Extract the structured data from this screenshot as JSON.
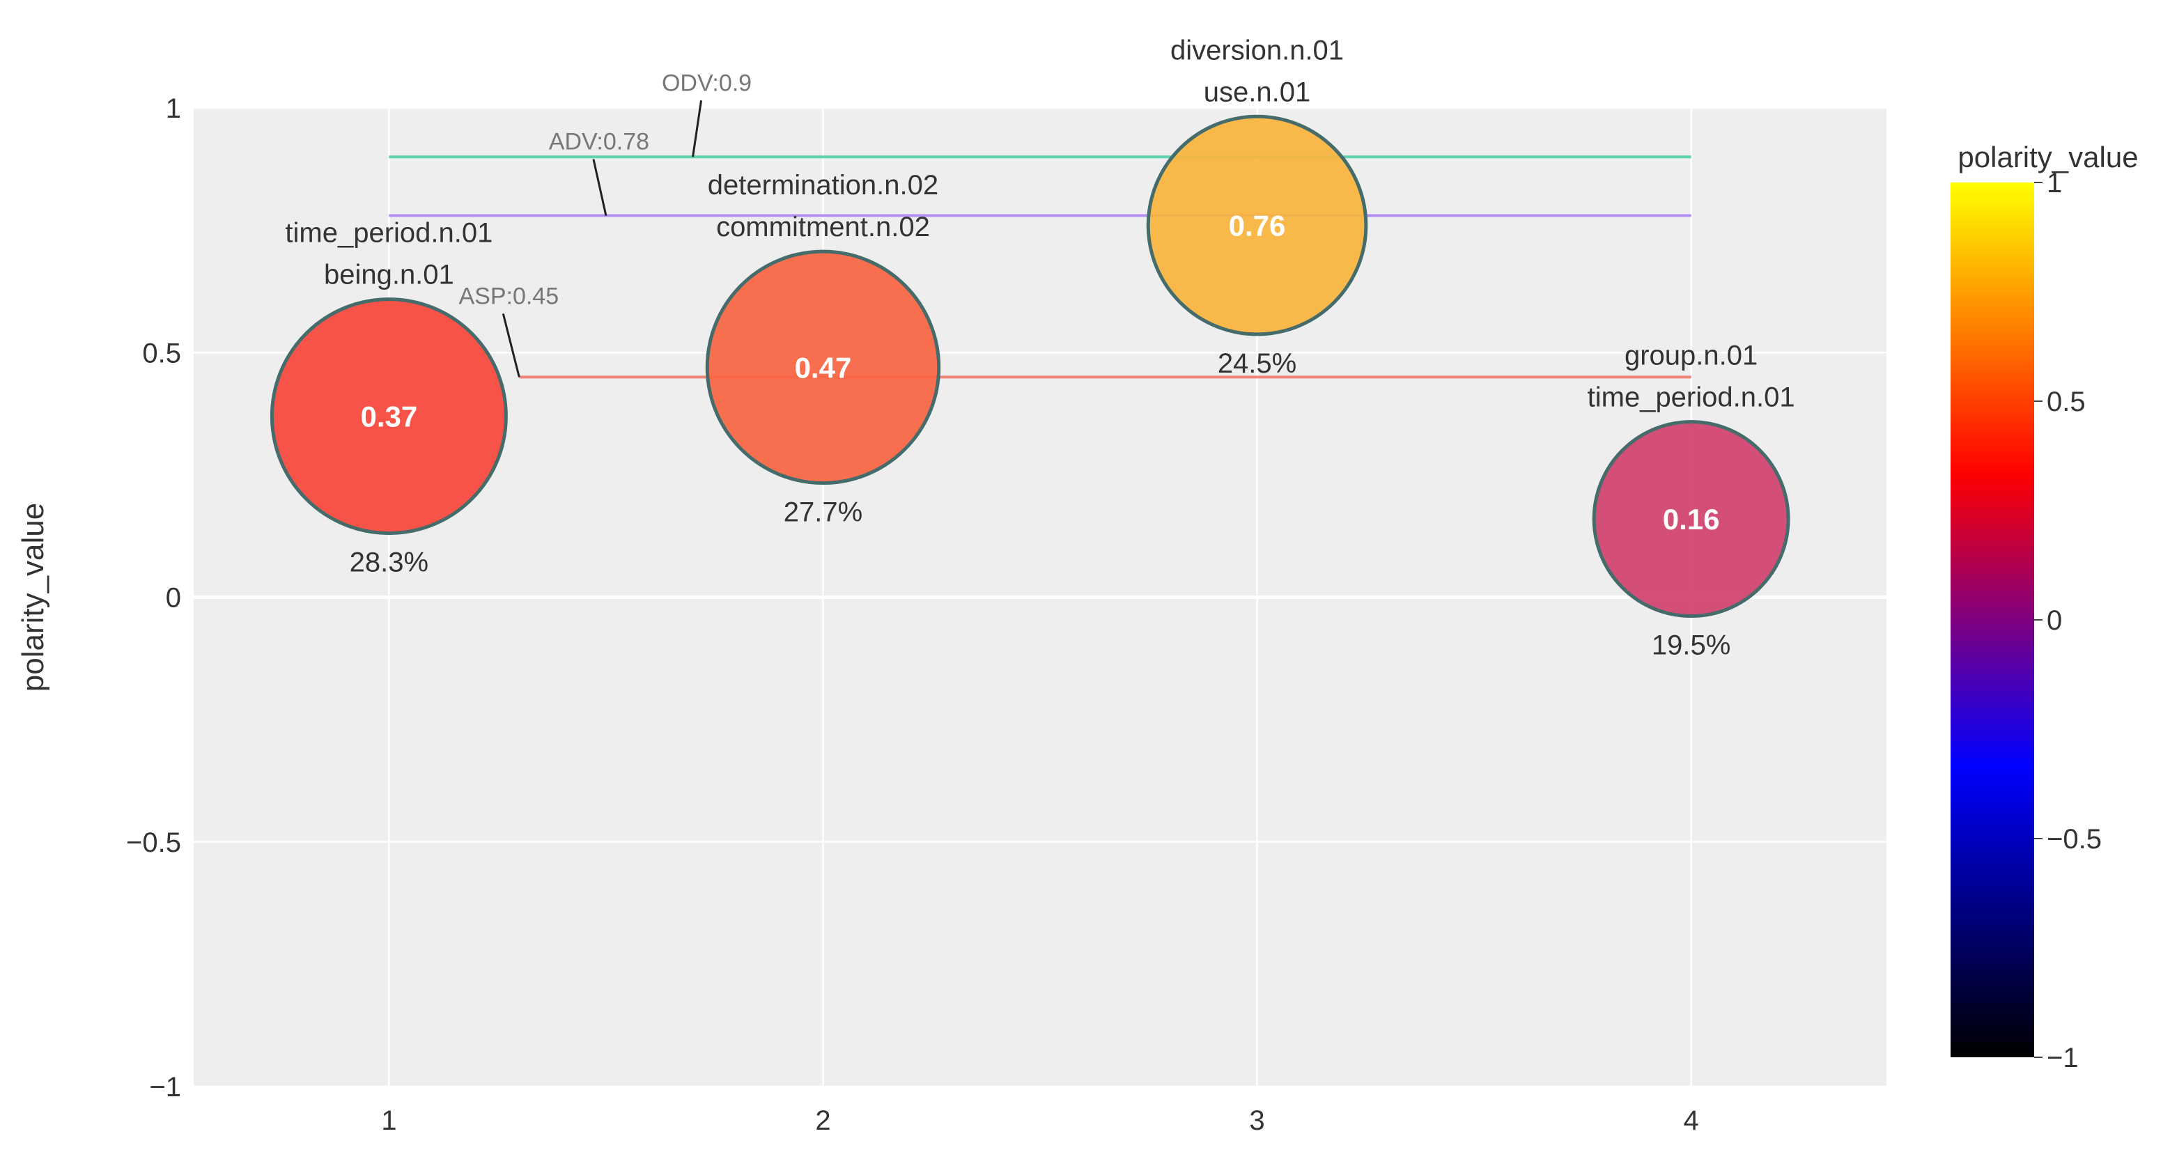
{
  "chart_data": {
    "type": "scatter",
    "x_ticks": [
      1,
      2,
      3,
      4
    ],
    "y_ticks": [
      {
        "v": 1,
        "label": "1"
      },
      {
        "v": 0.5,
        "label": "0.5"
      },
      {
        "v": 0,
        "label": "0"
      },
      {
        "v": -0.5,
        "label": "−0.5"
      },
      {
        "v": -1,
        "label": "−1"
      }
    ],
    "xlim": [
      0.55,
      4.45
    ],
    "ylim": [
      -1.0,
      1.0
    ],
    "ylabel": "polarity_value",
    "points": [
      {
        "x": 1,
        "y": 0.37,
        "value_label": "0.37",
        "share": 28.3,
        "share_label": "28.3%",
        "labels": [
          "time_period.n.01",
          "being.n.01"
        ],
        "color": "#f7453a"
      },
      {
        "x": 2,
        "y": 0.47,
        "value_label": "0.47",
        "share": 27.7,
        "share_label": "27.7%",
        "labels": [
          "determination.n.02",
          "commitment.n.02"
        ],
        "color": "#f96442"
      },
      {
        "x": 3,
        "y": 0.76,
        "value_label": "0.76",
        "share": 24.5,
        "share_label": "24.5%",
        "labels": [
          "diversion.n.01",
          "use.n.01"
        ],
        "color": "#f9b43c"
      },
      {
        "x": 4,
        "y": 0.16,
        "value_label": "0.16",
        "share": 19.5,
        "share_label": "19.5%",
        "labels": [
          "group.n.01",
          "time_period.n.01"
        ],
        "color": "#d0416c"
      }
    ],
    "reference_lines": [
      {
        "name": "ODV",
        "label": "ODV:0.9",
        "value": 0.9,
        "x_start": 1,
        "x_end": 4,
        "color": "#5fd3b0",
        "label_anchor_x": 1.7
      },
      {
        "name": "ADV",
        "label": "ADV:0.78",
        "value": 0.78,
        "x_start": 1,
        "x_end": 4,
        "color": "#b490f5",
        "label_anchor_x": 1.5
      },
      {
        "name": "ASP",
        "label": "ASP:0.45",
        "value": 0.45,
        "x_start": 1.3,
        "x_end": 4,
        "color": "#f0857a",
        "label_anchor_x": 1.3
      }
    ],
    "colorbar": {
      "title": "polarity_value",
      "range": [
        -1,
        1
      ],
      "ticks": [
        {
          "v": 1,
          "label": "1"
        },
        {
          "v": 0.5,
          "label": "0.5"
        },
        {
          "v": 0,
          "label": "0"
        },
        {
          "v": -0.5,
          "label": "−0.5"
        },
        {
          "v": -1,
          "label": "−1"
        }
      ],
      "stops": [
        "#000000",
        "#0000ff",
        "#ff0000",
        "#ffff00"
      ]
    }
  }
}
